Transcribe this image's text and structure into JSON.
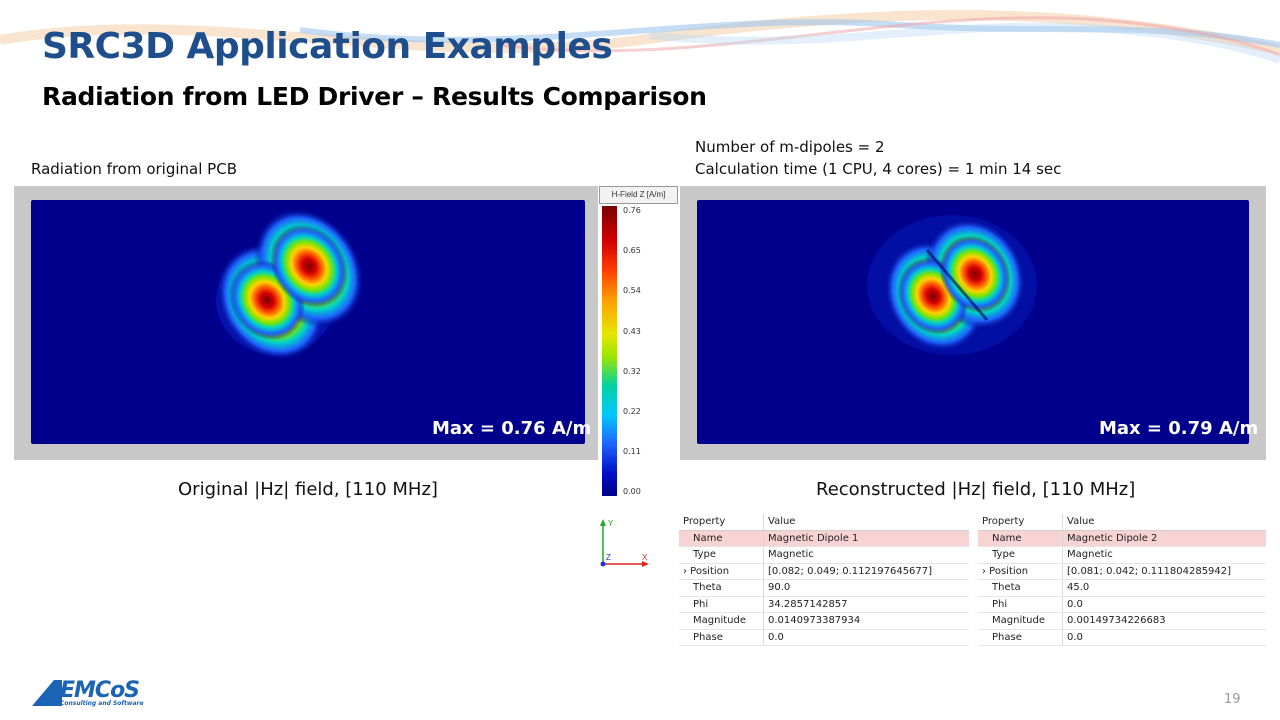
{
  "header": {
    "title": "SRC3D Application Examples",
    "subtitle": "Radiation from LED Driver – Results Comparison"
  },
  "left": {
    "label": "Radiation from original PCB",
    "max_label": "Max = 0.76 A/m",
    "caption": "Original |Hz| field, [110 MHz]"
  },
  "right": {
    "info_line1": "Number of m-dipoles = 2",
    "info_line2": "Calculation time (1 CPU, 4 cores) = 1 min 14 sec",
    "max_label": "Max = 0.79 A/m",
    "caption": "Reconstructed |Hz| field, [110 MHz]"
  },
  "colorbar": {
    "title": "H-Field Z [A/m]",
    "ticks": [
      "0.76",
      "0.65",
      "0.54",
      "0.43",
      "0.32",
      "0.22",
      "0.11",
      "0.00"
    ]
  },
  "axes": {
    "y": "Y",
    "z": "Z",
    "x": "X"
  },
  "dipole1": {
    "headers": [
      "Property",
      "Value"
    ],
    "rows": [
      [
        "Name",
        "Magnetic Dipole 1"
      ],
      [
        "Type",
        "Magnetic"
      ],
      [
        "Position",
        "[0.082; 0.049; 0.112197645677]"
      ],
      [
        "Theta",
        "90.0"
      ],
      [
        "Phi",
        "34.2857142857"
      ],
      [
        "Magnitude",
        "0.0140973387934"
      ],
      [
        "Phase",
        "0.0"
      ]
    ]
  },
  "dipole2": {
    "headers": [
      "Property",
      "Value"
    ],
    "rows": [
      [
        "Name",
        "Magnetic Dipole 2"
      ],
      [
        "Type",
        "Magnetic"
      ],
      [
        "Position",
        "[0.081; 0.042; 0.111804285942]"
      ],
      [
        "Theta",
        "45.0"
      ],
      [
        "Phi",
        "0.0"
      ],
      [
        "Magnitude",
        "0.00149734226683"
      ],
      [
        "Phase",
        "0.0"
      ]
    ]
  },
  "footer": {
    "logo": "EMCoS",
    "logo_sub": "Consulting and Software",
    "page": "19"
  },
  "colors": {
    "title": "#1f4e8c",
    "field_background": "#00008c",
    "selected_row": "#f8d3d3"
  }
}
